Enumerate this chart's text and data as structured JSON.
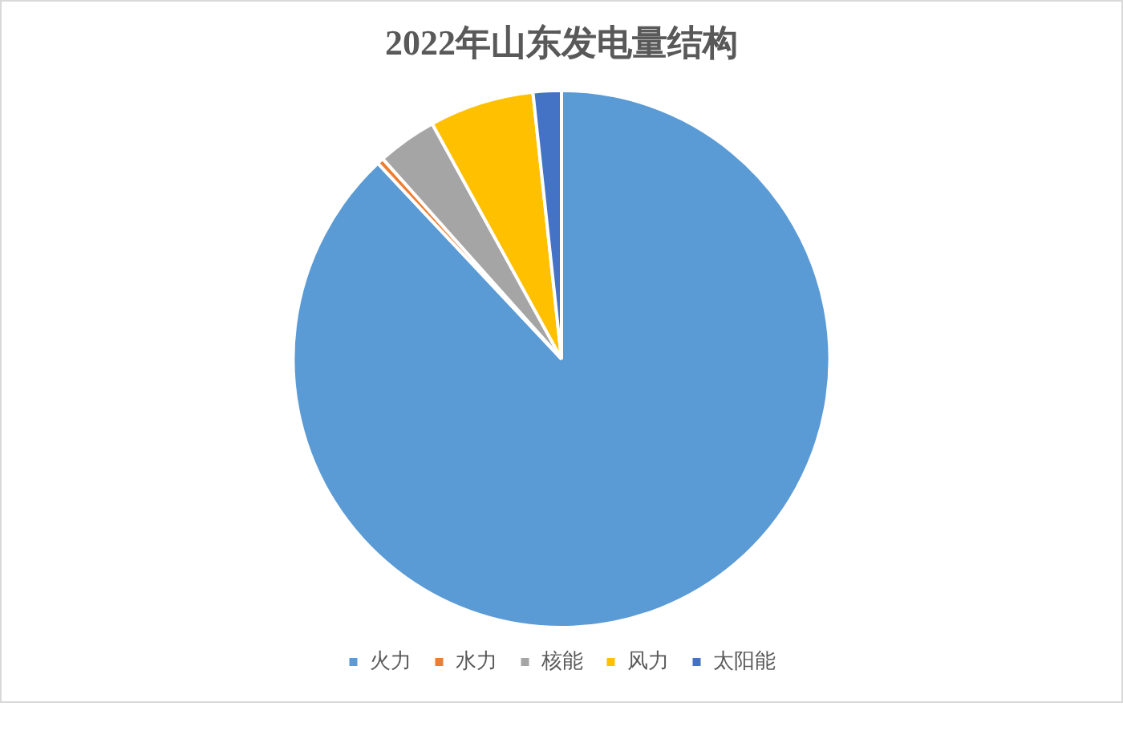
{
  "chart_data": {
    "type": "pie",
    "title": "2022年山东发电量结构",
    "categories": [
      "火力",
      "水力",
      "核能",
      "风力",
      "太阳能"
    ],
    "values": [
      88.0,
      0.4,
      3.6,
      6.3,
      1.7
    ],
    "colors": [
      "#5b9bd5",
      "#ed7d31",
      "#a5a5a5",
      "#ffc000",
      "#4472c4"
    ],
    "legend": "bottom"
  }
}
